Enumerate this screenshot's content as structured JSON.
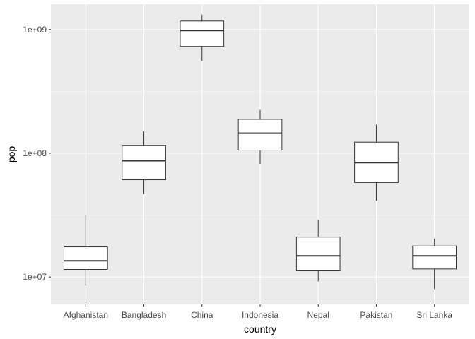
{
  "chart_data": {
    "type": "boxplot",
    "xlabel": "country",
    "ylabel": "pop",
    "y_scale": "log10",
    "ylim": [
      6000000,
      1600000000
    ],
    "y_ticks": [
      10000000,
      100000000,
      1000000000
    ],
    "y_tick_labels": [
      "1e+07",
      "1e+08",
      "1e+09"
    ],
    "categories": [
      "Afghanistan",
      "Bangladesh",
      "China",
      "Indonesia",
      "Nepal",
      "Pakistan",
      "Sri Lanka"
    ],
    "boxes": [
      {
        "category": "Afghanistan",
        "min": 8500000,
        "q1": 11500000,
        "median": 13500000,
        "q3": 17500000,
        "max": 31800000
      },
      {
        "category": "Bangladesh",
        "min": 46900000,
        "q1": 61000000,
        "median": 87000000,
        "q3": 115000000,
        "max": 150000000
      },
      {
        "category": "China",
        "min": 556000000,
        "q1": 730000000,
        "median": 980000000,
        "q3": 1170000000,
        "max": 1320000000
      },
      {
        "category": "Indonesia",
        "min": 82000000,
        "q1": 106000000,
        "median": 145000000,
        "q3": 188000000,
        "max": 224000000
      },
      {
        "category": "Nepal",
        "min": 9200000,
        "q1": 11200000,
        "median": 14800000,
        "q3": 21000000,
        "max": 28900000
      },
      {
        "category": "Pakistan",
        "min": 41300000,
        "q1": 58000000,
        "median": 84000000,
        "q3": 123000000,
        "max": 170000000
      },
      {
        "category": "Sri Lanka",
        "min": 7980000,
        "q1": 11600000,
        "median": 14800000,
        "q3": 17800000,
        "max": 20400000
      }
    ],
    "grid": true,
    "legend": "none",
    "colors": {
      "panel_background": "#ebebeb",
      "grid_major": "#ffffff",
      "grid_minor": "#f5f5f5",
      "box_fill": "#ffffff",
      "box_stroke": "#333333",
      "tick_text": "#4d4d4d",
      "title_text": "#000000"
    }
  }
}
